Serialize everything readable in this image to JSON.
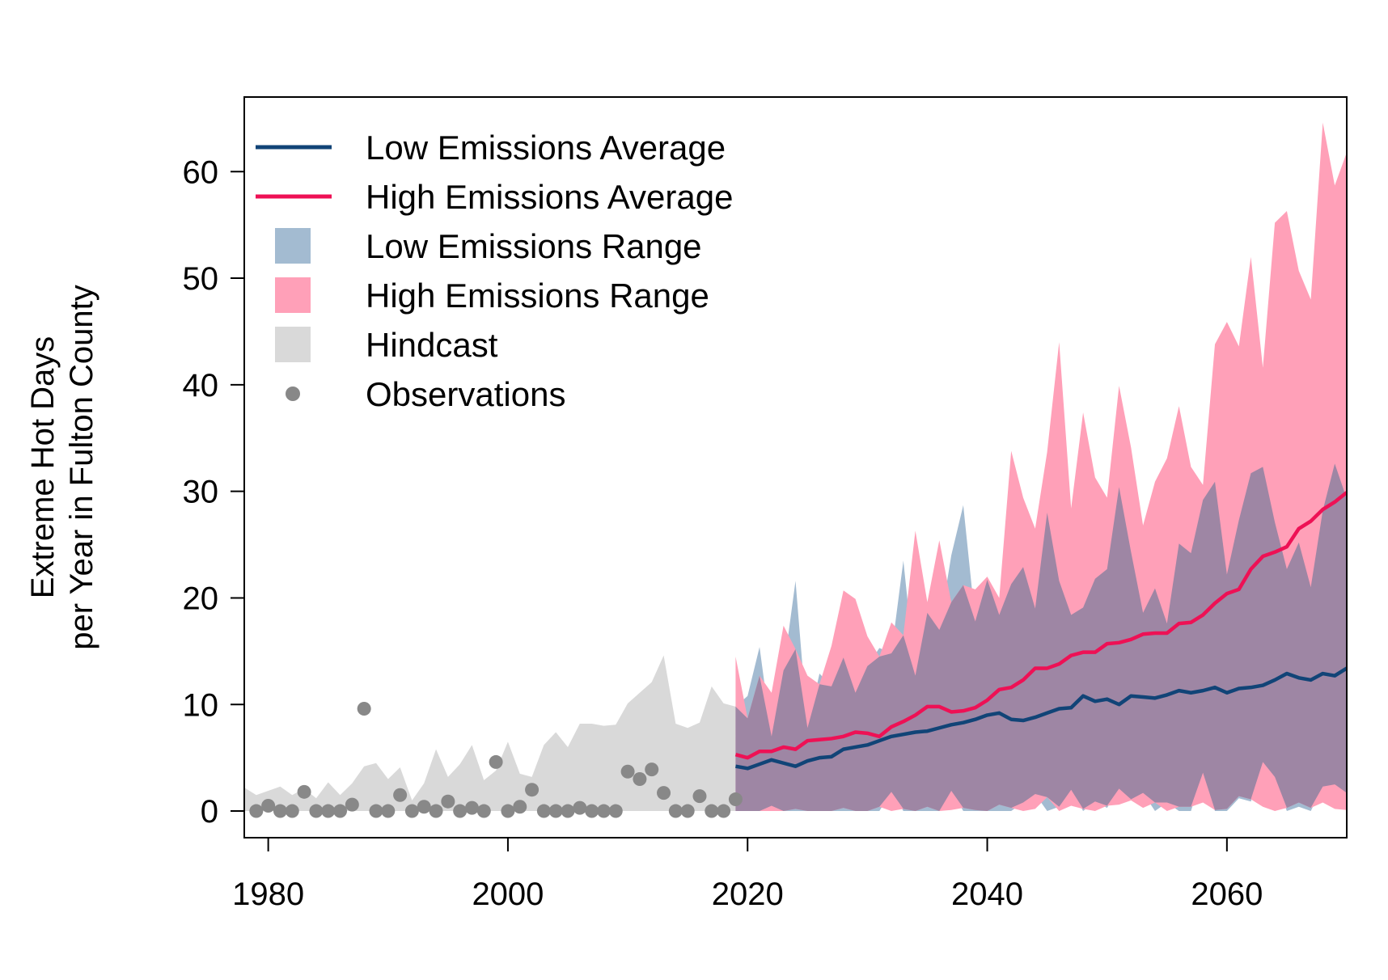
{
  "chart_data": {
    "type": "line",
    "title": "",
    "xlabel": "",
    "ylabel": [
      "Extreme Hot Days",
      "per Year in Fulton County"
    ],
    "xlim": [
      1978,
      2070
    ],
    "ylim": [
      -2.5,
      67
    ],
    "x_ticks": [
      1980,
      2000,
      2020,
      2040,
      2060
    ],
    "y_ticks": [
      0,
      10,
      20,
      30,
      40,
      50,
      60
    ],
    "grid": false,
    "legend_position": "top-left",
    "legend": [
      {
        "label": "Low Emissions Average",
        "kind": "line",
        "color": "#114477"
      },
      {
        "label": "High Emissions Average",
        "kind": "line",
        "color": "#ee1155"
      },
      {
        "label": "Low Emissions Range",
        "kind": "fill",
        "color": "#a3bbd1"
      },
      {
        "label": "High Emissions Range",
        "kind": "fill",
        "color": "#ffa0b8"
      },
      {
        "label": "Hindcast",
        "kind": "fill",
        "color": "#d9d9d9"
      },
      {
        "label": "Observations",
        "kind": "point",
        "color": "#888888"
      }
    ],
    "colors": {
      "low_avg": "#114477",
      "high_avg": "#ee1155",
      "low_range": "#a3bbd1",
      "high_range": "#ffa0b8",
      "overlap": "#9e86a4",
      "hindcast": "#d9d9d9",
      "observations": "#888888"
    },
    "hindcast": {
      "x": [
        1978,
        1979,
        1980,
        1981,
        1982,
        1983,
        1984,
        1985,
        1986,
        1987,
        1988,
        1989,
        1990,
        1991,
        1992,
        1993,
        1994,
        1995,
        1996,
        1997,
        1998,
        1999,
        2000,
        2001,
        2002,
        2003,
        2004,
        2005,
        2006,
        2007,
        2008,
        2009,
        2010,
        2011,
        2012,
        2013,
        2014,
        2015,
        2016,
        2017,
        2018,
        2019
      ],
      "upper": [
        2.2,
        1.5,
        1.9,
        2.3,
        1.5,
        2.1,
        1.2,
        2.7,
        1.5,
        2.6,
        4.2,
        4.5,
        3.0,
        4.1,
        1.0,
        2.6,
        5.8,
        3.2,
        4.4,
        6.2,
        2.9,
        3.8,
        6.5,
        3.5,
        3.2,
        6.2,
        7.4,
        6.0,
        8.2,
        8.2,
        8.0,
        8.1,
        10.1,
        11.1,
        12.1,
        14.6,
        8.2,
        7.8,
        8.3,
        11.7,
        10.1,
        9.8
      ],
      "lower": [
        0,
        0,
        0,
        0,
        0,
        0,
        0,
        0,
        0,
        0,
        0,
        0,
        0,
        0,
        0,
        0,
        0,
        0,
        0,
        0,
        0,
        0,
        0,
        0,
        0,
        0,
        0,
        0,
        0,
        0,
        0,
        0,
        0,
        0,
        0,
        0,
        0,
        0,
        0,
        0,
        0,
        0
      ]
    },
    "observations": {
      "x": [
        1979,
        1980,
        1981,
        1982,
        1983,
        1984,
        1985,
        1986,
        1987,
        1988,
        1989,
        1990,
        1991,
        1992,
        1993,
        1994,
        1995,
        1996,
        1997,
        1998,
        1999,
        2000,
        2001,
        2002,
        2003,
        2004,
        2005,
        2006,
        2007,
        2008,
        2009,
        2010,
        2011,
        2012,
        2013,
        2014,
        2015,
        2016,
        2017,
        2018,
        2019
      ],
      "y": [
        0,
        0.5,
        0,
        0,
        1.8,
        0,
        0,
        0,
        0.6,
        9.6,
        0,
        0,
        1.5,
        0,
        0.4,
        0,
        0.9,
        0,
        0.3,
        0,
        4.6,
        0,
        0.4,
        2.0,
        0,
        0,
        0,
        0.3,
        0,
        0,
        0,
        3.7,
        3.0,
        3.9,
        1.7,
        0,
        0,
        1.4,
        0,
        0,
        1.1
      ]
    },
    "x_future": [
      2019,
      2020,
      2021,
      2022,
      2023,
      2024,
      2025,
      2026,
      2027,
      2028,
      2029,
      2030,
      2031,
      2032,
      2033,
      2034,
      2035,
      2036,
      2037,
      2038,
      2039,
      2040,
      2041,
      2042,
      2043,
      2044,
      2045,
      2046,
      2047,
      2048,
      2049,
      2050,
      2051,
      2052,
      2053,
      2054,
      2055,
      2056,
      2057,
      2058,
      2059,
      2060,
      2061,
      2062,
      2063,
      2064,
      2065,
      2066,
      2067,
      2068,
      2069,
      2070
    ],
    "series": [
      {
        "name": "Low Emissions Range",
        "upper": [
          9.8,
          10.8,
          15.4,
          7.0,
          13.2,
          21.6,
          7.8,
          12.9,
          11.7,
          14.4,
          11.1,
          13.6,
          15.3,
          14.8,
          23.5,
          12.7,
          18.6,
          17.0,
          24.0,
          28.7,
          17.8,
          21.7,
          18.4,
          21.3,
          22.9,
          19.0,
          28.0,
          21.6,
          18.4,
          19.1,
          21.8,
          22.7,
          30.4,
          24.3,
          18.6,
          20.9,
          17.6,
          25.1,
          24.2,
          29.2,
          30.9,
          22.2,
          27.3,
          31.7,
          32.3,
          27.1,
          22.7,
          25.2,
          21.0,
          28.2,
          32.6,
          29.3
        ],
        "lower": [
          0,
          0,
          0,
          0.5,
          0,
          0,
          0,
          0,
          0,
          0,
          0,
          0,
          0,
          1.8,
          0,
          0,
          0,
          0,
          1.9,
          0,
          0,
          0,
          0,
          0,
          0.8,
          1.6,
          0,
          0.4,
          2.0,
          0,
          0.9,
          0.3,
          2.1,
          1.1,
          1.7,
          0,
          0.8,
          0,
          0,
          3.6,
          0,
          0,
          1.2,
          0.9,
          4.6,
          3.2,
          0,
          0.4,
          0,
          2.3,
          2.5,
          1.7
        ]
      },
      {
        "name": "High Emissions Range",
        "upper": [
          14.5,
          8.7,
          12.7,
          11.1,
          17.4,
          15.2,
          12.7,
          11.9,
          15.5,
          20.7,
          19.9,
          16.4,
          14.5,
          17.7,
          16.5,
          26.3,
          19.6,
          25.4,
          19.6,
          21.2,
          20.8,
          22.0,
          20.0,
          33.8,
          29.4,
          26.5,
          33.7,
          44.0,
          28.4,
          37.4,
          31.3,
          29.4,
          39.9,
          34.1,
          26.8,
          30.9,
          33.1,
          38.0,
          32.3,
          30.6,
          43.8,
          45.9,
          43.6,
          52.0,
          41.6,
          55.2,
          56.3,
          50.7,
          48.0,
          64.6,
          58.7,
          61.8
        ],
        "lower": [
          0,
          0,
          0,
          0,
          0,
          0.2,
          0,
          0,
          0,
          0.3,
          0,
          0,
          0.4,
          0,
          0.2,
          0,
          0.4,
          0,
          0.1,
          0.3,
          0.1,
          0,
          0.6,
          0.3,
          0,
          0.2,
          1.3,
          0,
          0.5,
          0.2,
          0,
          0.5,
          0.6,
          1.0,
          0.3,
          0.8,
          0,
          0.4,
          0.4,
          0.8,
          0.1,
          0.2,
          1.4,
          1.1,
          0.4,
          0,
          0.3,
          0.8,
          0.3,
          0.8,
          0.2,
          0.1
        ]
      },
      {
        "name": "Low Emissions Average",
        "values": [
          4.2,
          4.0,
          4.4,
          4.8,
          4.5,
          4.2,
          4.7,
          5.0,
          5.1,
          5.8,
          6.0,
          6.2,
          6.6,
          7.0,
          7.2,
          7.4,
          7.5,
          7.8,
          8.1,
          8.3,
          8.6,
          9.0,
          9.2,
          8.6,
          8.5,
          8.8,
          9.2,
          9.6,
          9.7,
          10.8,
          10.3,
          10.5,
          10.0,
          10.8,
          10.7,
          10.6,
          10.9,
          11.3,
          11.1,
          11.3,
          11.6,
          11.1,
          11.5,
          11.6,
          11.8,
          12.3,
          12.9,
          12.5,
          12.3,
          12.9,
          12.7,
          13.4
        ]
      },
      {
        "name": "High Emissions Average",
        "values": [
          5.3,
          5.0,
          5.6,
          5.6,
          6.0,
          5.8,
          6.6,
          6.7,
          6.8,
          7.0,
          7.4,
          7.3,
          7.0,
          7.9,
          8.4,
          9.0,
          9.8,
          9.8,
          9.3,
          9.4,
          9.7,
          10.4,
          11.4,
          11.6,
          12.3,
          13.4,
          13.4,
          13.8,
          14.6,
          14.9,
          14.9,
          15.7,
          15.8,
          16.1,
          16.6,
          16.7,
          16.7,
          17.6,
          17.7,
          18.4,
          19.5,
          20.4,
          20.8,
          22.7,
          23.9,
          24.3,
          24.8,
          26.5,
          27.2,
          28.3,
          29.0,
          29.9
        ]
      }
    ]
  }
}
